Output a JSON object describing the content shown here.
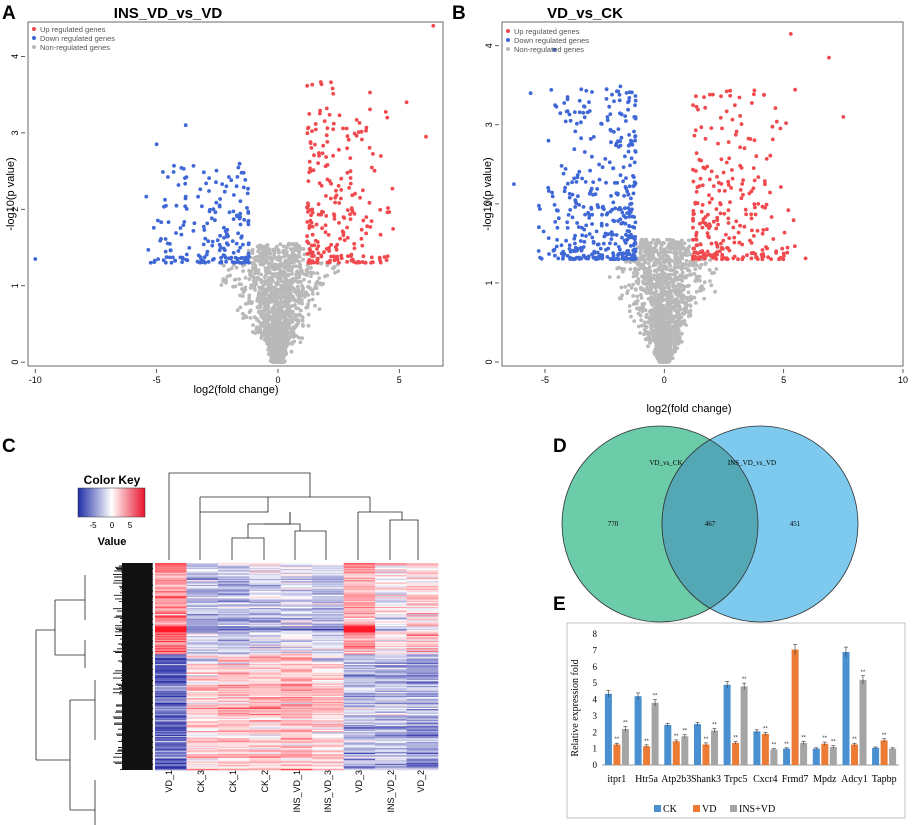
{
  "panels": {
    "A": "A",
    "B": "B",
    "C": "C",
    "D": "D",
    "E": "E"
  },
  "colors": {
    "up": "#f04a4f",
    "down": "#3f68d6",
    "non": "#b9b9b9",
    "ck": "#4a8fd0",
    "vd": "#ec7b35",
    "insvd": "#a5a5a5",
    "venn_left": "#6ccba8",
    "venn_right": "#7ec9ee",
    "venn_overlap": "#54a8b5"
  },
  "chart_data": [
    {
      "id": "A",
      "type": "scatter",
      "title": "INS_VD_vs_VD",
      "xlabel": "log2(fold change)",
      "ylabel": "-log10(p value)",
      "xlim": [
        -10.3,
        6.8
      ],
      "ylim": [
        -0.05,
        4.45
      ],
      "xticks": [
        -10,
        -5,
        0,
        5
      ],
      "yticks": [
        0,
        1,
        2,
        3,
        4
      ],
      "threshold_p": 1.3,
      "threshold_fc": 1,
      "legend": [
        "Up regulated genes",
        "Down regulated genes",
        "Non-regulated genes"
      ],
      "legend_position": "top-left",
      "series": [
        {
          "name": "Up regulated genes",
          "count": 451,
          "max_fc": 6.5,
          "max_p": 4.4
        },
        {
          "name": "Down regulated genes",
          "count": 360,
          "min_fc": -10,
          "max_p": 3.1
        },
        {
          "name": "Non-regulated genes",
          "count": 6000
        }
      ],
      "notable_points": [
        [
          6.4,
          4.4
        ],
        [
          5.3,
          3.4
        ],
        [
          6.1,
          2.95
        ],
        [
          -10,
          1.35
        ],
        [
          -5.0,
          2.85
        ],
        [
          -3.8,
          3.1
        ],
        [
          4.5,
          3.2
        ]
      ]
    },
    {
      "id": "B",
      "type": "scatter",
      "title": "VD_vs_CK",
      "xlabel": "log2(fold change)",
      "ylabel": "-log10(p value)",
      "xlim": [
        -6.8,
        10
      ],
      "ylim": [
        -0.05,
        4.3
      ],
      "xticks": [
        -5,
        0,
        5,
        10
      ],
      "yticks": [
        0,
        1,
        2,
        3,
        4
      ],
      "threshold_p": 1.3,
      "threshold_fc": 1,
      "legend": [
        "Up regulated genes",
        "Down regulated genes",
        "Non-regulated genes"
      ],
      "legend_position": "top-left",
      "series": [
        {
          "name": "Up regulated genes",
          "count": 500,
          "max_fc": 7.5,
          "max_p": 4.15
        },
        {
          "name": "Down regulated genes",
          "count": 740,
          "min_fc": -6.3,
          "max_p": 4.0
        },
        {
          "name": "Non-regulated genes",
          "count": 6000
        }
      ],
      "notable_points": [
        [
          5.3,
          4.15
        ],
        [
          -4.6,
          3.95
        ],
        [
          6.9,
          3.85
        ],
        [
          7.5,
          3.1
        ],
        [
          -6.3,
          2.25
        ],
        [
          -5.6,
          3.4
        ]
      ]
    },
    {
      "id": "E",
      "type": "bar",
      "title": "",
      "xlabel": "",
      "ylabel": "Relative expression fold",
      "ylim": [
        0,
        8
      ],
      "yticks": [
        0,
        1,
        2,
        3,
        4,
        5,
        6,
        7,
        8
      ],
      "categories": [
        "itpr1",
        "Htr5a",
        "Atp2b3",
        "Shank3",
        "Trpc5",
        "Cxcr4",
        "Frmd7",
        "Mpdz",
        "Adcy1",
        "Tapbp"
      ],
      "series": [
        {
          "name": "CK",
          "values": [
            4.35,
            4.2,
            2.45,
            2.5,
            4.9,
            2.05,
            1.0,
            1.0,
            6.9,
            1.05
          ],
          "errors": [
            0.2,
            0.2,
            0.1,
            0.1,
            0.2,
            0.1,
            0.05,
            0.05,
            0.3,
            0.05
          ]
        },
        {
          "name": "VD",
          "values": [
            1.25,
            1.15,
            1.45,
            1.25,
            1.35,
            1.9,
            7.05,
            1.3,
            1.25,
            1.5
          ],
          "errors": [
            0.08,
            0.08,
            0.08,
            0.1,
            0.08,
            0.1,
            0.3,
            0.1,
            0.08,
            0.1
          ]
        },
        {
          "name": "INS+VD",
          "values": [
            2.2,
            3.8,
            1.75,
            2.1,
            4.8,
            0.95,
            1.35,
            1.1,
            5.2,
            1.0
          ],
          "errors": [
            0.15,
            0.2,
            0.1,
            0.12,
            0.2,
            0.05,
            0.1,
            0.08,
            0.25,
            0.05
          ]
        }
      ],
      "significance": {
        "label": "**",
        "marks": [
          [
            false,
            true,
            true
          ],
          [
            false,
            true,
            true
          ],
          [
            false,
            true,
            true
          ],
          [
            false,
            true,
            true
          ],
          [
            false,
            true,
            true
          ],
          [
            false,
            true,
            true
          ],
          [
            true,
            false,
            true
          ],
          [
            false,
            true,
            true
          ],
          [
            false,
            true,
            true
          ],
          [
            false,
            true,
            false
          ]
        ]
      },
      "legend": [
        "CK",
        "VD",
        "INS+VD"
      ],
      "legend_position": "bottom"
    }
  ],
  "venn": {
    "left_label": "VD_vs_CK",
    "right_label": "INS_VD_vs_VD",
    "left_only": "770",
    "overlap": "467",
    "right_only": "451"
  },
  "heatmap": {
    "color_key_title": "Color Key",
    "color_key_ticks": [
      "-5",
      "0",
      "5"
    ],
    "color_key_label": "Value",
    "columns": [
      "VD_1",
      "CK_3",
      "CK_1",
      "CK_2",
      "INS_VD_1",
      "INS_VD_3",
      "VD_3",
      "INS_VD_2",
      "VD_2"
    ]
  }
}
